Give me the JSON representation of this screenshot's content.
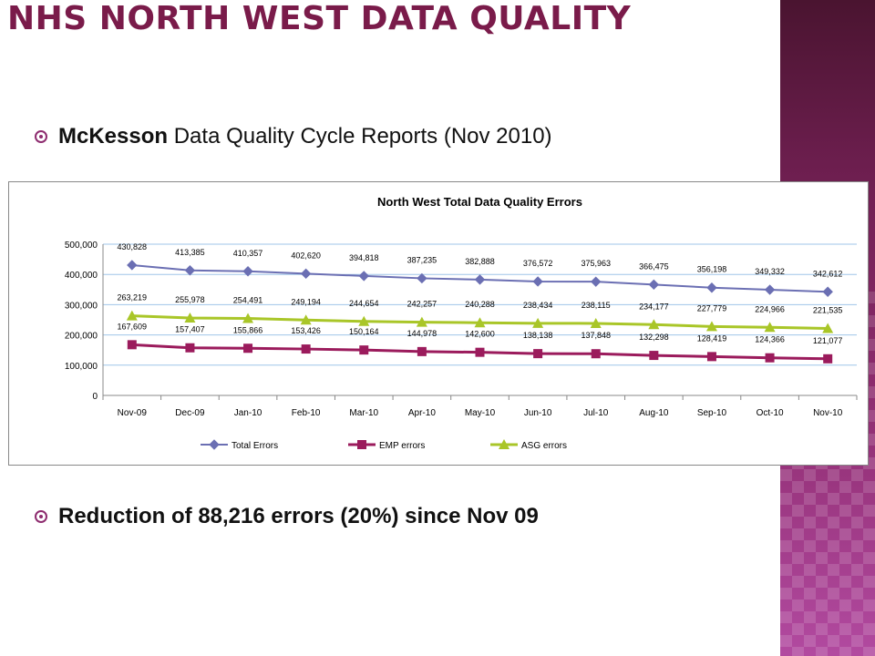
{
  "slide": {
    "title": "NHS North West Data Quality",
    "bullet1_bold": "McKesson",
    "bullet1_rest": " Data Quality Cycle Reports (Nov 2010)",
    "bullet2": "Reduction of 88,216 errors (20%) since Nov 09"
  },
  "colors": {
    "title": "#7a1b4a",
    "band": "#6c1e4e",
    "total": "#6b6fb3",
    "emp": "#9b1b5c",
    "asg": "#a9c628"
  },
  "chart_data": {
    "type": "line",
    "title": "North West Total Data Quality Errors",
    "categories": [
      "Nov-09",
      "Dec-09",
      "Jan-10",
      "Feb-10",
      "Mar-10",
      "Apr-10",
      "May-10",
      "Jun-10",
      "Jul-10",
      "Aug-10",
      "Sep-10",
      "Oct-10",
      "Nov-10"
    ],
    "ylim": [
      0,
      500000
    ],
    "yticks": [
      "0",
      "100,000",
      "200,000",
      "300,000",
      "400,000",
      "500,000"
    ],
    "ytick_values": [
      0,
      100000,
      200000,
      300000,
      400000,
      500000
    ],
    "grid": true,
    "legend_position": "bottom",
    "series": [
      {
        "name": "Total Errors",
        "marker": "diamond",
        "values": [
          430828,
          413385,
          410357,
          402620,
          394818,
          387235,
          382888,
          376572,
          375963,
          366475,
          356198,
          349332,
          342612
        ],
        "labels": [
          "430,828",
          "413,385",
          "410,357",
          "402,620",
          "394,818",
          "387,235",
          "382,888",
          "376,572",
          "375,963",
          "366,475",
          "356,198",
          "349,332",
          "342,612"
        ]
      },
      {
        "name": "EMP errors",
        "marker": "square",
        "values": [
          167609,
          157407,
          155866,
          153426,
          150164,
          144978,
          142600,
          138138,
          137848,
          132298,
          128419,
          124366,
          121077
        ],
        "labels": [
          "167,609",
          "157,407",
          "155,866",
          "153,426",
          "150,164",
          "144,978",
          "142,600",
          "138,138",
          "137,848",
          "132,298",
          "128,419",
          "124,366",
          "121,077"
        ]
      },
      {
        "name": "ASG errors",
        "marker": "triangle",
        "values": [
          263219,
          255978,
          254491,
          249194,
          244654,
          242257,
          240288,
          238434,
          238115,
          234177,
          227779,
          224966,
          221535
        ],
        "labels": [
          "263,219",
          "255,978",
          "254,491",
          "249,194",
          "244,654",
          "242,257",
          "240,288",
          "238,434",
          "238,115",
          "234,177",
          "227,779",
          "224,966",
          "221,535"
        ]
      }
    ]
  }
}
